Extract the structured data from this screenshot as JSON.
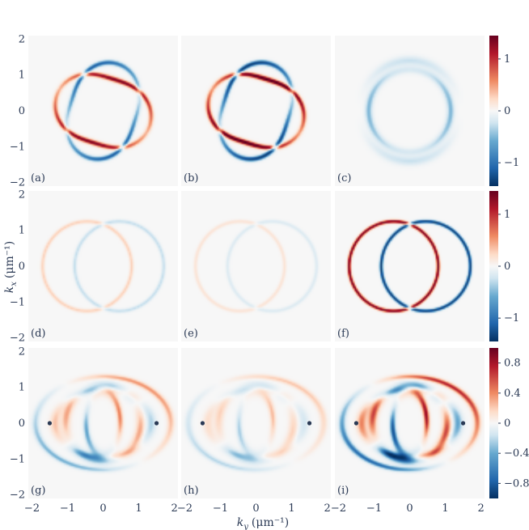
{
  "chart_data": {
    "type": "heatmap",
    "xlabel": "k_y (μm⁻¹)",
    "xlabel_parts": {
      "symbol": "k",
      "subscript": "y",
      "unit": "(μm⁻¹)"
    },
    "ylabel": "k_x (μm⁻¹)",
    "ylabel_parts": {
      "symbol": "k",
      "subscript": "x",
      "unit": "(μm⁻¹)"
    },
    "xlim": [
      -2.1,
      2.1
    ],
    "ylim": [
      -2.1,
      2.1
    ],
    "x_ticks": [
      -2,
      -1,
      0,
      1,
      2
    ],
    "y_ticks": [
      -2,
      -1,
      0,
      1,
      2
    ],
    "x_tick_labels": [
      "−2",
      "−1",
      "0",
      "1",
      "2"
    ],
    "y_tick_labels": [
      "−2",
      "−1",
      "0",
      "1",
      "2"
    ],
    "colormap": "RdBu_r",
    "colors": {
      "positive": "#8b0a1e",
      "neutral": "#f7f7f7",
      "negative": "#083a73",
      "text": "#2b3a55"
    },
    "grid": false,
    "panels": [
      {
        "label": "(a)",
        "row": 0,
        "col": 0,
        "style": "twisted-ring",
        "amp": 1.0
      },
      {
        "label": "(b)",
        "row": 0,
        "col": 1,
        "style": "twisted-ring",
        "amp": 1.2
      },
      {
        "label": "(c)",
        "row": 0,
        "col": 2,
        "style": "blue-ring",
        "amp": 0.45
      },
      {
        "label": "(d)",
        "row": 1,
        "col": 0,
        "style": "crossing-circles",
        "amp": 0.3
      },
      {
        "label": "(e)",
        "row": 1,
        "col": 1,
        "style": "crossing-circles",
        "amp": 0.18
      },
      {
        "label": "(f)",
        "row": 1,
        "col": 2,
        "style": "crossing-circles",
        "amp": 1.0
      },
      {
        "label": "(g)",
        "row": 2,
        "col": 0,
        "style": "complex",
        "amp": 0.6,
        "points": [
          {
            "x": -1.5,
            "y": 0
          },
          {
            "x": 1.5,
            "y": 0
          }
        ]
      },
      {
        "label": "(h)",
        "row": 2,
        "col": 1,
        "style": "complex",
        "amp": 0.4,
        "points": [
          {
            "x": -1.5,
            "y": 0
          },
          {
            "x": 1.5,
            "y": 0
          }
        ]
      },
      {
        "label": "(i)",
        "row": 2,
        "col": 2,
        "style": "complex",
        "amp": 0.95,
        "points": [
          {
            "x": -1.5,
            "y": 0
          },
          {
            "x": 1.5,
            "y": 0
          }
        ]
      }
    ],
    "colorbars": [
      {
        "row": 0,
        "range": [
          -1.45,
          1.45
        ],
        "ticks": [
          1,
          0,
          -1
        ],
        "tick_labels": [
          "1",
          "0",
          "−1"
        ]
      },
      {
        "row": 1,
        "range": [
          -1.45,
          1.45
        ],
        "ticks": [
          1,
          0,
          -1
        ],
        "tick_labels": [
          "1",
          "0",
          "−1"
        ]
      },
      {
        "row": 2,
        "range": [
          -1.0,
          1.0
        ],
        "ticks": [
          0.8,
          0.4,
          0,
          -0.4,
          -0.8
        ],
        "tick_labels": [
          "0.8",
          "0.4",
          "0",
          "−0.4",
          "−0.8"
        ]
      }
    ]
  }
}
